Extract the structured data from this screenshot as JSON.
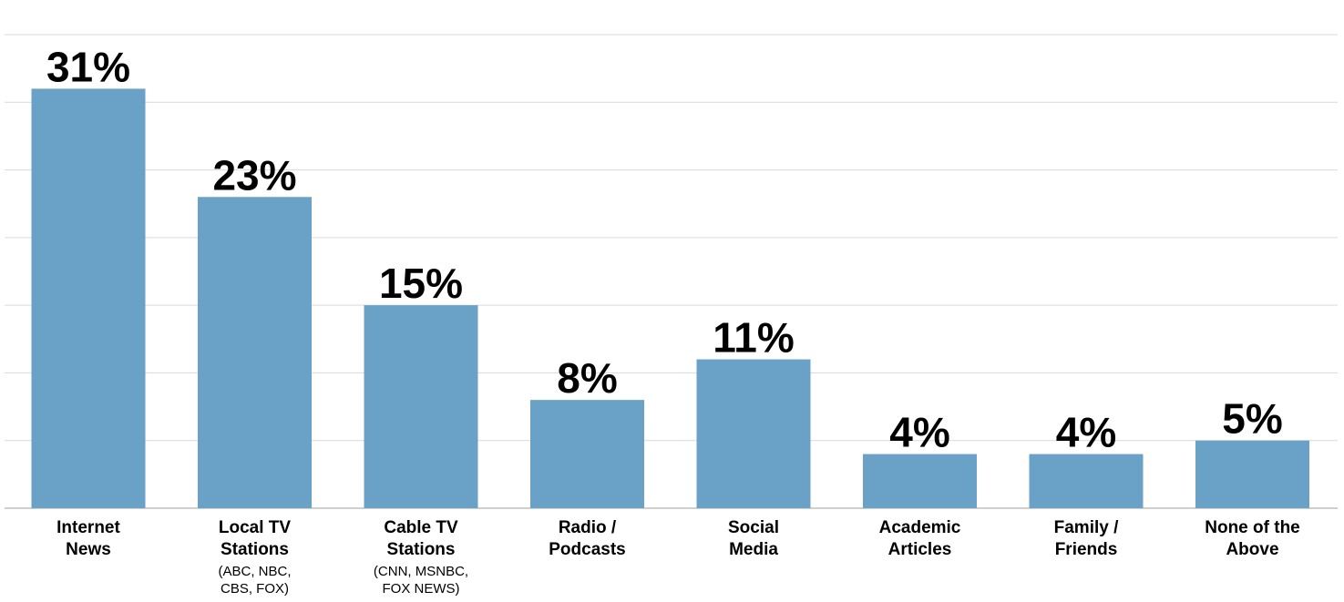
{
  "chart_data": {
    "type": "bar",
    "title": "",
    "xlabel": "",
    "ylabel": "",
    "ylim": [
      0,
      35
    ],
    "grid": true,
    "bar_color": "#6aa1c6",
    "grid_color": "#d9d9d9",
    "categories": [
      {
        "lines": [
          "Internet",
          "News"
        ],
        "sub": []
      },
      {
        "lines": [
          "Local TV",
          "Stations"
        ],
        "sub": [
          "(ABC, NBC,",
          "CBS, FOX)"
        ]
      },
      {
        "lines": [
          "Cable TV",
          "Stations"
        ],
        "sub": [
          "(CNN, MSNBC,",
          "FOX NEWS)"
        ]
      },
      {
        "lines": [
          "Radio /",
          "Podcasts"
        ],
        "sub": []
      },
      {
        "lines": [
          "Social",
          "Media"
        ],
        "sub": []
      },
      {
        "lines": [
          "Academic",
          "Articles"
        ],
        "sub": []
      },
      {
        "lines": [
          "Family /",
          "Friends"
        ],
        "sub": []
      },
      {
        "lines": [
          "None of the",
          "Above"
        ],
        "sub": []
      }
    ],
    "values": [
      31,
      23,
      15,
      8,
      11,
      4,
      4,
      5
    ],
    "value_labels": [
      "31%",
      "23%",
      "15%",
      "8%",
      "11%",
      "4%",
      "4%",
      "5%"
    ]
  }
}
